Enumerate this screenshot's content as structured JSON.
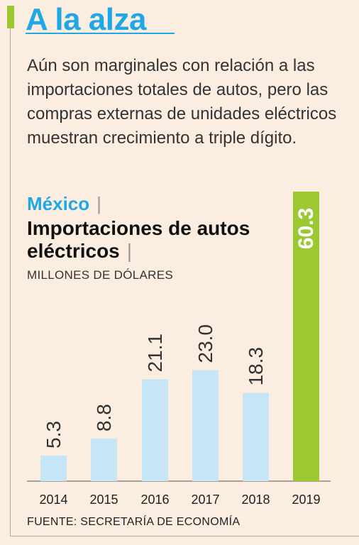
{
  "header": {
    "title": "A la alza",
    "intro": "Aún son marginales con relación a las importaciones totales de autos, pero las compras externas de unidades eléctricos muestran crecimiento a triple dígito."
  },
  "chart_data": {
    "type": "bar",
    "country": "México",
    "title": "Importaciones de autos eléctricos",
    "subtitle": "MILLONES DE DÓLARES",
    "categories": [
      "2014",
      "2015",
      "2016",
      "2017",
      "2018",
      "2019"
    ],
    "values": [
      5.3,
      8.8,
      21.1,
      23.0,
      18.3,
      60.3
    ],
    "value_labels": [
      "5.3",
      "8.8",
      "21.1",
      "23.0",
      "18.3",
      "60.3"
    ],
    "highlight_index": 5,
    "colors": {
      "bar": "#c6e6f7",
      "highlight": "#9cc832",
      "title": "#1ea9e6"
    },
    "grid": false,
    "source": "FUENTE: SECRETARÍA DE ECONOMÍA"
  }
}
